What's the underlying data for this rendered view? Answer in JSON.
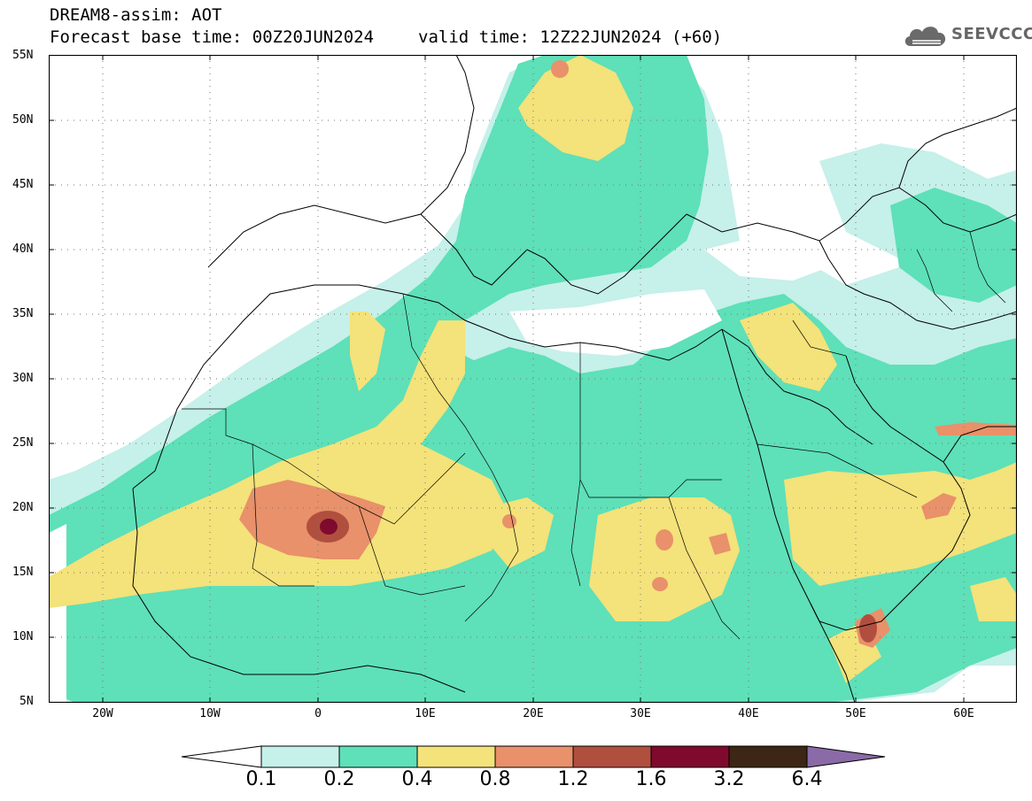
{
  "header": {
    "line1": "DREAM8-assim: AOT",
    "base_time": "Forecast base time: 00Z20JUN2024",
    "valid_time": "valid time: 12Z22JUN2024 (+60)"
  },
  "logo": {
    "text": "SEEVCCC",
    "icon": "cloud-icon"
  },
  "axes": {
    "lat_labels": [
      "55N",
      "50N",
      "45N",
      "40N",
      "35N",
      "30N",
      "25N",
      "20N",
      "15N",
      "10N",
      "5N"
    ],
    "lon_labels": [
      "20W",
      "10W",
      "0",
      "10E",
      "20E",
      "30E",
      "40E",
      "50E",
      "60E"
    ],
    "lat_range": [
      5,
      55
    ],
    "lon_range": [
      -25,
      65
    ]
  },
  "legend": {
    "type": "colorbar",
    "extend": "both",
    "colors": [
      "#ffffff",
      "#c6f0ea",
      "#5ee0b8",
      "#f4e27a",
      "#e8916a",
      "#b14f3f",
      "#7f0a2e",
      "#3d2615",
      "#8b6aa8"
    ],
    "tick_labels": [
      "0.1",
      "0.2",
      "0.4",
      "0.8",
      "1.2",
      "1.6",
      "3.2",
      "6.4"
    ]
  }
}
